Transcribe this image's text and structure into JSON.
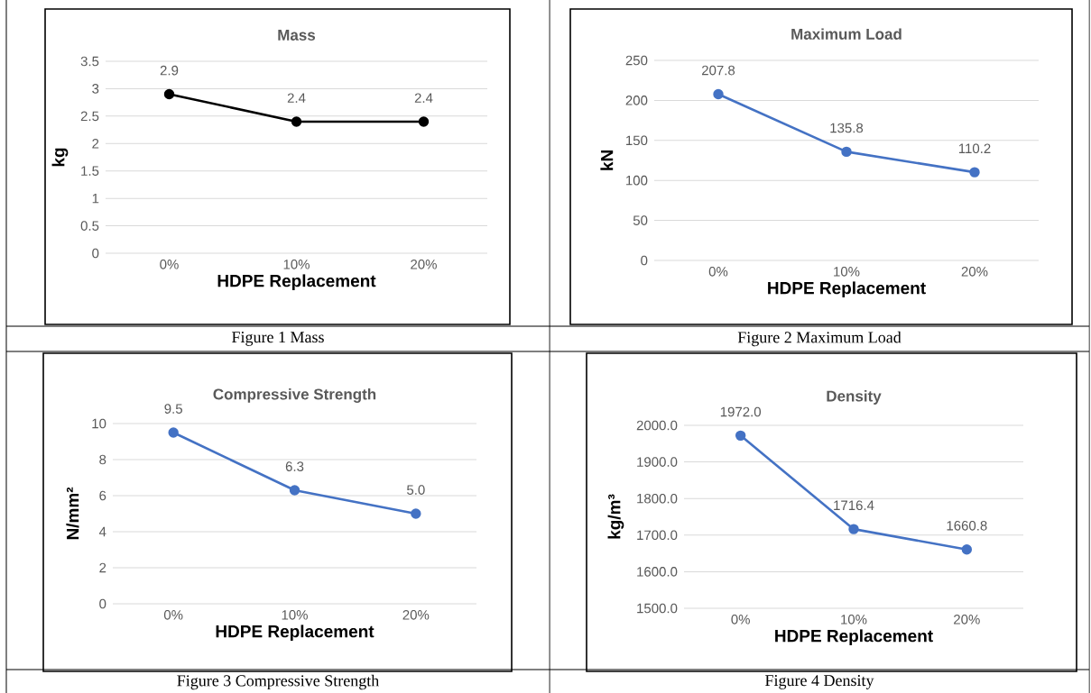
{
  "chart_data": [
    {
      "type": "line",
      "title": "Mass",
      "xlabel": "HDPE Replacement",
      "ylabel": "kg",
      "categories": [
        "0%",
        "10%",
        "20%"
      ],
      "values": [
        2.9,
        2.4,
        2.4
      ],
      "value_labels": [
        "2.9",
        "2.4",
        "2.4"
      ],
      "color": "#000000",
      "marker": "circle",
      "ylim": [
        0,
        3.5
      ],
      "yticks": [
        0,
        0.5,
        1,
        1.5,
        2,
        2.5,
        3,
        3.5
      ],
      "grid": "y",
      "annotations": [
        "Figure 1 Mass"
      ]
    },
    {
      "type": "line",
      "title": "Maximum Load",
      "xlabel": "HDPE Replacement",
      "ylabel": "kN",
      "categories": [
        "0%",
        "10%",
        "20%"
      ],
      "values": [
        207.8,
        135.8,
        110.2
      ],
      "value_labels": [
        "207.8",
        "135.8",
        "110.2"
      ],
      "color": "#4472c4",
      "marker": "circle",
      "ylim": [
        0,
        250
      ],
      "yticks": [
        0,
        50,
        100,
        150,
        200,
        250
      ],
      "grid": "y",
      "annotations": [
        "Figure 2 Maximum Load"
      ]
    },
    {
      "type": "line",
      "title": "Compressive Strength",
      "xlabel": "HDPE Replacement",
      "ylabel": "N/mm²",
      "categories": [
        "0%",
        "10%",
        "20%"
      ],
      "values": [
        9.5,
        6.3,
        5.0
      ],
      "value_labels": [
        "9.5",
        "6.3",
        "5.0"
      ],
      "color": "#4472c4",
      "marker": "circle",
      "ylim": [
        0,
        10
      ],
      "yticks": [
        0,
        2,
        4,
        6,
        8,
        10
      ],
      "grid": "y",
      "annotations": [
        "Figure 3 Compressive Strength"
      ]
    },
    {
      "type": "line",
      "title": "Density",
      "xlabel": "HDPE Replacement",
      "ylabel": "kg/m³",
      "categories": [
        "0%",
        "10%",
        "20%"
      ],
      "values": [
        1972.0,
        1716.4,
        1660.8
      ],
      "value_labels": [
        "1972.0",
        "1716.4",
        "1660.8"
      ],
      "color": "#4472c4",
      "marker": "circle",
      "ylim": [
        1500,
        2000
      ],
      "yticks": [
        {
          "value": 1500,
          "label": "1500.0"
        },
        {
          "value": 1600,
          "label": "1600.0"
        },
        {
          "value": 1700,
          "label": "1700.0"
        },
        {
          "value": 1800,
          "label": "1800.0"
        },
        {
          "value": 1900,
          "label": "1900.0"
        },
        {
          "value": 2000,
          "label": "2000.0"
        }
      ],
      "grid": "y",
      "annotations": [
        "Figure 4 Density"
      ]
    }
  ]
}
